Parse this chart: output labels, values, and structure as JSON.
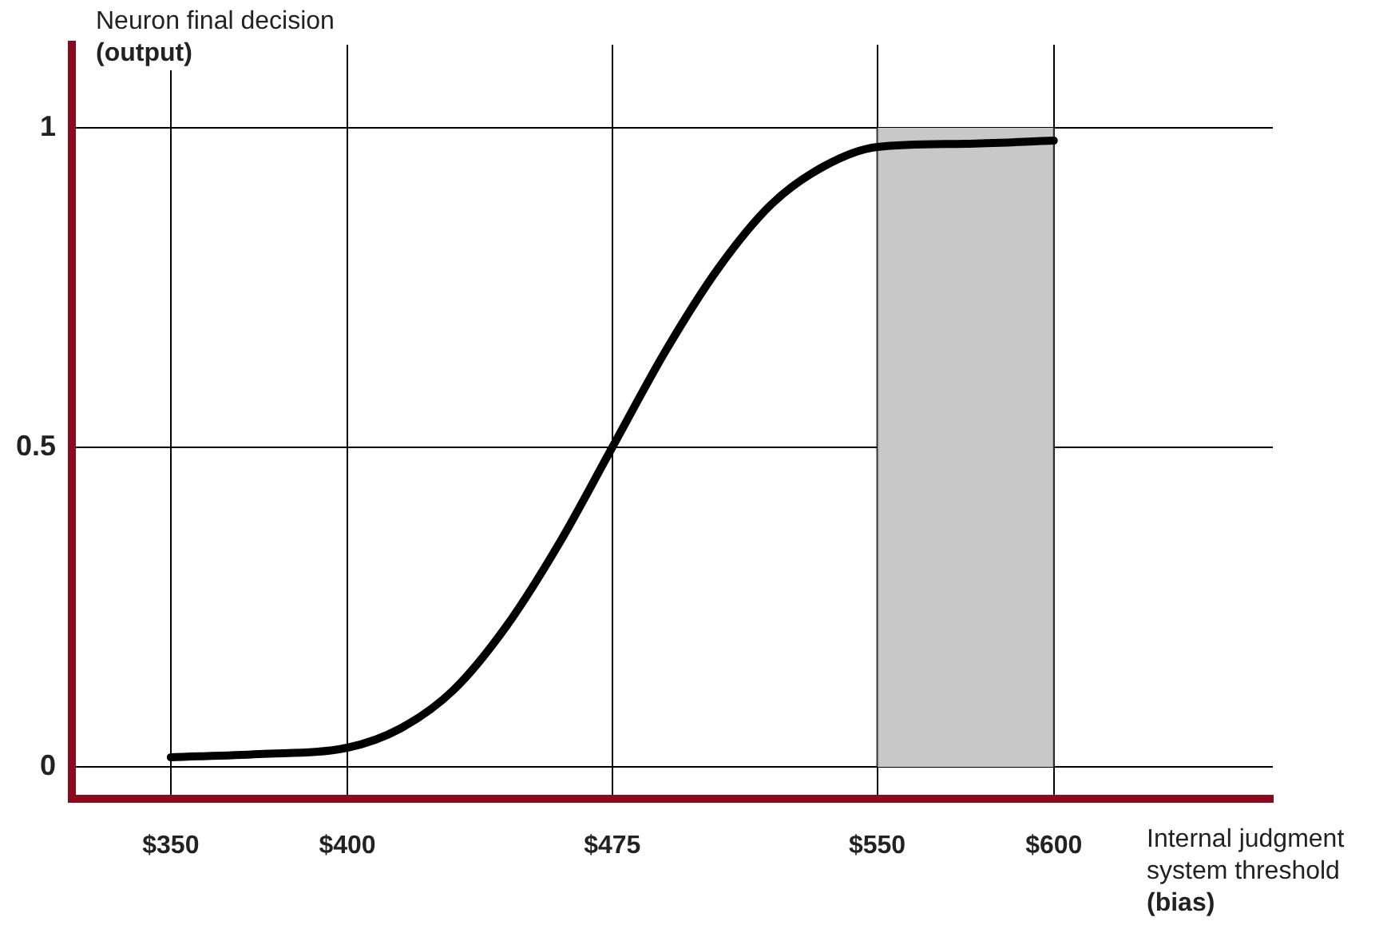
{
  "chart_data": {
    "type": "line",
    "xlabel": "Internal judgment system threshold\n(bias)",
    "ylabel": "Neuron final decision\n(output)",
    "x": [
      350,
      375,
      400,
      415,
      430,
      445,
      460,
      475,
      490,
      505,
      520,
      535,
      550,
      575,
      600
    ],
    "series": [
      {
        "color": "#000000",
        "values": [
          0.015,
          0.02,
          0.03,
          0.06,
          0.12,
          0.22,
          0.35,
          0.5,
          0.65,
          0.78,
          0.88,
          0.94,
          0.97,
          0.975,
          0.98
        ]
      }
    ],
    "xlim": [
      322,
      662
    ],
    "ylim": [
      -0.05,
      1.13
    ],
    "xticks": [
      {
        "value": 350,
        "label": "$350"
      },
      {
        "value": 400,
        "label": "$400"
      },
      {
        "value": 475,
        "label": "$475"
      },
      {
        "value": 550,
        "label": "$550"
      },
      {
        "value": 600,
        "label": "$600"
      }
    ],
    "yticks": [
      0,
      0.5,
      1
    ],
    "bands": [
      {
        "axis": "x",
        "from": 550,
        "to": 600,
        "color": "#c8c8c8"
      }
    ],
    "grid": true,
    "legend": false,
    "marker": "none",
    "line_style": "solid"
  }
}
